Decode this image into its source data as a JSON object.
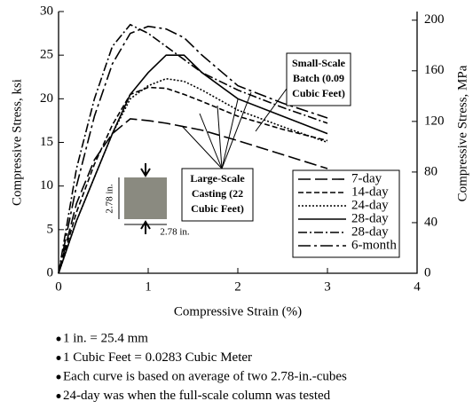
{
  "chart_data": {
    "type": "line",
    "xlabel": "Compressive Strain (%)",
    "ylabel": "Compressive Stress, ksi",
    "y2label": "Compressive Stress, MPa",
    "x": [
      0,
      0.2,
      0.4,
      0.6,
      0.8,
      1.0,
      1.2,
      1.4,
      1.6,
      2.0,
      2.5,
      3.0
    ],
    "series": [
      {
        "name": "7-day",
        "color": "#000000",
        "dash": "14,5",
        "values": [
          0,
          8,
          13,
          16,
          17.7,
          17.5,
          17.2,
          16.8,
          16.4,
          15.2,
          13.6,
          12
        ]
      },
      {
        "name": "14-day",
        "color": "#000000",
        "dash": "6,3",
        "values": [
          0,
          7,
          12.5,
          17,
          20.5,
          21.3,
          21.2,
          20.5,
          19.7,
          18,
          16.5,
          15.2
        ]
      },
      {
        "name": "24-day",
        "color": "#000000",
        "dash": "2,2",
        "values": [
          0,
          6,
          11,
          16,
          20,
          21.5,
          22.3,
          22,
          21,
          18.7,
          16.8,
          15
        ]
      },
      {
        "name": "28-day",
        "color": "#000000",
        "dash": "none",
        "values": [
          0,
          6,
          11,
          16,
          20.5,
          23,
          25,
          25,
          23,
          20,
          18,
          16
        ]
      },
      {
        "name": "28-day",
        "color": "#000000",
        "dash": "10,3,2,3",
        "values": [
          0,
          12,
          20,
          26,
          28.5,
          27.5,
          26,
          24.5,
          23,
          21,
          19,
          17.2
        ]
      },
      {
        "name": "6-month",
        "color": "#000000",
        "dash": "14,4,3,4",
        "values": [
          0,
          10,
          18,
          24,
          27.5,
          28.3,
          28,
          27,
          25,
          21.5,
          19.5,
          17.8
        ]
      }
    ],
    "xlim": [
      0,
      4
    ],
    "xticks": [
      0,
      1,
      2,
      3,
      4
    ],
    "ylim": [
      0,
      30
    ],
    "yticks": [
      0,
      5,
      10,
      15,
      20,
      25,
      30
    ],
    "y2lim": [
      0,
      206.84
    ],
    "y2ticks": [
      0,
      40,
      80,
      120,
      160,
      200
    ],
    "legend": "lower right",
    "annotations": [
      {
        "lines": [
          "Small-Scale",
          "Batch (0.09",
          "Cubic Feet)"
        ]
      },
      {
        "lines": [
          "Large-Scale",
          "Casting (22",
          "Cubic Feet)"
        ]
      }
    ],
    "specimen_labels": [
      "2.78 in.",
      "2.78 in."
    ],
    "notes": [
      "1 in. = 25.4 mm",
      "1 Cubic Feet = 0.0283 Cubic Meter",
      "Each curve is based on average of two 2.78-in.-cubes",
      "24-day was when the full-scale column was tested"
    ]
  }
}
